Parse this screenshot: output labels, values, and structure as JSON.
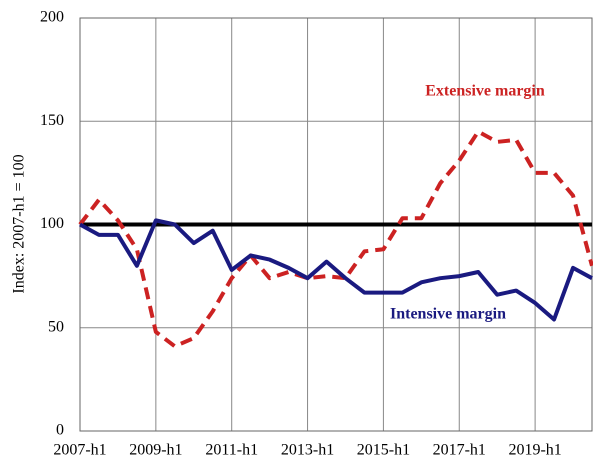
{
  "chart_data": {
    "type": "line",
    "y_label": "Index: 2007-h1 = 100",
    "categories": [
      "2007-h1",
      null,
      null,
      null,
      "2009-h1",
      null,
      null,
      null,
      "2011-h1",
      null,
      null,
      null,
      "2013-h1",
      null,
      null,
      null,
      "2015-h1",
      null,
      null,
      null,
      "2017-h1",
      null,
      null,
      null,
      "2019-h1",
      null,
      null,
      null
    ],
    "series": [
      {
        "name": "Extensive margin",
        "color": "#cc2222",
        "dash": true,
        "values": [
          100,
          112,
          102,
          88,
          48,
          41,
          45,
          58,
          74,
          85,
          74,
          77,
          74,
          75,
          74,
          87,
          88,
          103,
          103,
          120,
          131,
          145,
          140,
          141,
          125,
          125,
          114,
          80
        ]
      },
      {
        "name": "Intensive margin",
        "color": "#1a1a80",
        "dash": false,
        "values": [
          100,
          95,
          95,
          80,
          102,
          100,
          91,
          97,
          78,
          85,
          83,
          79,
          74,
          82,
          74,
          67,
          67,
          67,
          72,
          74,
          75,
          77,
          66,
          68,
          62,
          54,
          79,
          74
        ]
      }
    ],
    "ref_line": 100,
    "ylim": [
      0,
      200
    ],
    "yticks": [
      0,
      50,
      100,
      150,
      200
    ],
    "grid": true
  }
}
